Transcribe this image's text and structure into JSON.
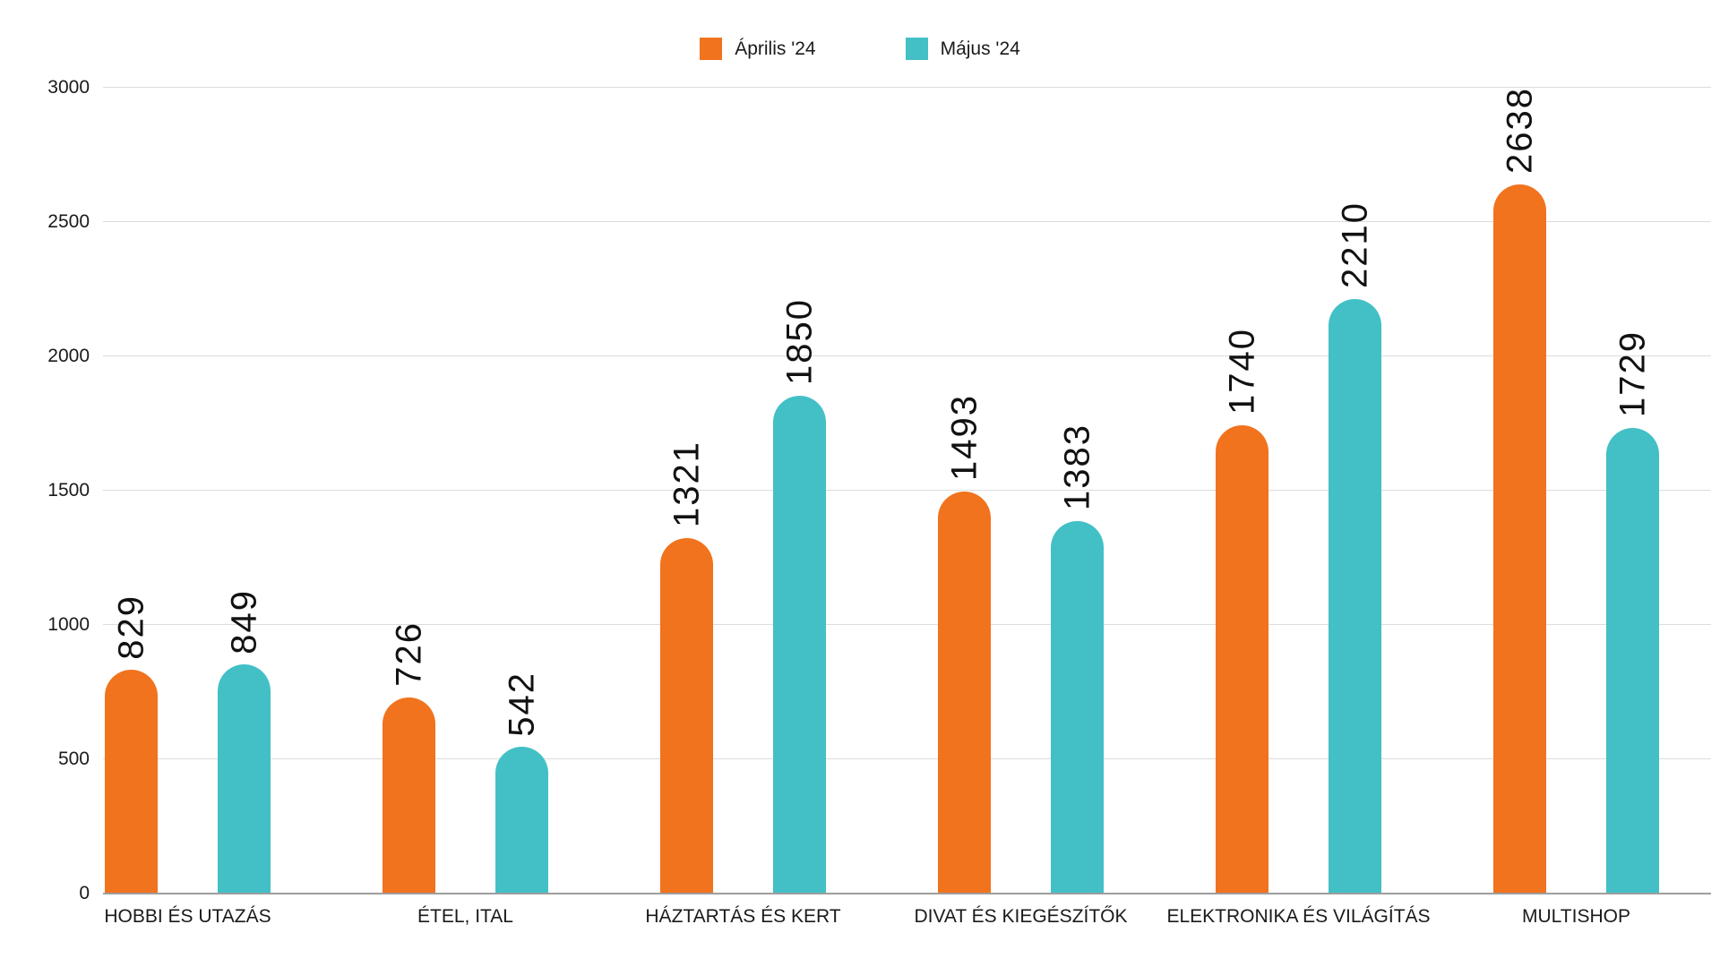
{
  "legend": {
    "items": [
      {
        "label": "Április '24"
      },
      {
        "label": "Május '24"
      }
    ]
  },
  "chart_data": {
    "type": "bar",
    "title": "",
    "categories": [
      "HOBBI ÉS UTAZÁS",
      "ÉTEL, ITAL",
      "HÁZTARTÁS ÉS KERT",
      "DIVAT ÉS KIEGÉSZÍTŐK",
      "ELEKTRONIKA ÉS VILÁGÍTÁS",
      "MULTISHOP"
    ],
    "series": [
      {
        "name": "Április '24",
        "color": "#F1731E",
        "values": [
          829,
          726,
          1321,
          1493,
          1740,
          2638
        ]
      },
      {
        "name": "Május '24",
        "color": "#42C0C6",
        "values": [
          849,
          542,
          1850,
          1383,
          2210,
          1729
        ]
      }
    ],
    "yticks": [
      0,
      500,
      1000,
      1500,
      2000,
      2500,
      3000
    ],
    "ylim": [
      0,
      3000
    ],
    "xlabel": "",
    "ylabel": "",
    "grid": true,
    "legend_position": "top",
    "value_labels": "rotated-90-above-bars"
  },
  "colors": {
    "april": "#F1731E",
    "may": "#42C0C6",
    "grid_line": "#DCDCDC",
    "axis_line": "#9E9E9E",
    "text": "#1A1A1A"
  }
}
